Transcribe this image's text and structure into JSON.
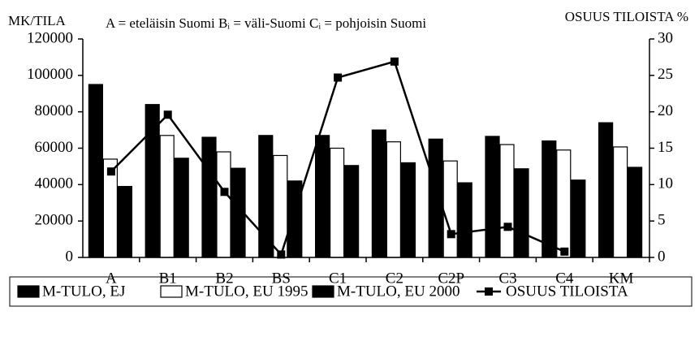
{
  "chart_data": {
    "type": "bar",
    "y_label": "MK/TILA",
    "title": "A = eteläisin Suomi   Bᵢ = väli-Suomi   Cᵢ = pohjoisin Suomi",
    "y2_label": "OSUUS TILOISTA %",
    "categories": [
      "A",
      "B1",
      "B2",
      "BS",
      "C1",
      "C2",
      "C2P",
      "C3",
      "C4",
      "KM"
    ],
    "series": [
      {
        "name": "M-TULO, EJ",
        "color": "#000000",
        "values": [
          95000,
          84000,
          66000,
          67000,
          67000,
          70000,
          65000,
          66500,
          64000,
          74000
        ]
      },
      {
        "name": "M-TULO, EU 1995",
        "color": "#ffffff",
        "values": [
          54000,
          67000,
          58000,
          56000,
          60000,
          63500,
          53000,
          62000,
          59000,
          60700
        ]
      },
      {
        "name": "M-TULO, EU 2000",
        "color": "#000000",
        "values": [
          39000,
          54500,
          49000,
          42000,
          50500,
          52000,
          41000,
          48700,
          42500,
          49500
        ]
      },
      {
        "name": "OSUUS TILOISTA",
        "color": "#000000",
        "axis": "y2",
        "type": "line",
        "values": [
          11.8,
          19.6,
          9.0,
          0.4,
          24.7,
          26.9,
          3.2,
          4.2,
          0.8,
          null
        ]
      }
    ],
    "ylim": [
      0,
      120000
    ],
    "yticks": [
      0,
      20000,
      40000,
      60000,
      80000,
      100000,
      120000
    ],
    "y2lim": [
      0,
      30
    ],
    "y2ticks": [
      0,
      5,
      10,
      15,
      20,
      25,
      30
    ],
    "grid": false,
    "legend": "bottom"
  }
}
